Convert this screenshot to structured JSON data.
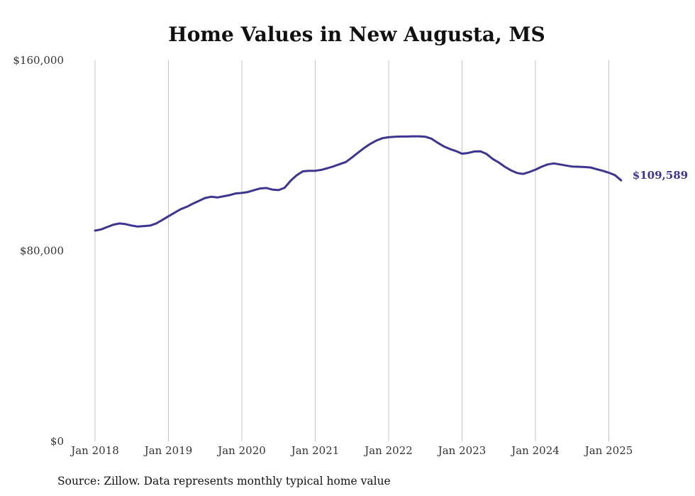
{
  "chart_data": {
    "type": "line",
    "title": "Home Values in New Augusta, MS",
    "xlabel": "",
    "ylabel": "",
    "ylim": [
      0,
      160000
    ],
    "y_ticks": [
      {
        "value": 0,
        "label": "$0"
      },
      {
        "value": 80000,
        "label": "$80,000"
      },
      {
        "value": 160000,
        "label": "$160,000"
      }
    ],
    "x_ticks": [
      {
        "value": 2018,
        "label": "Jan 2018"
      },
      {
        "value": 2019,
        "label": "Jan 2019"
      },
      {
        "value": 2020,
        "label": "Jan 2020"
      },
      {
        "value": 2021,
        "label": "Jan 2021"
      },
      {
        "value": 2022,
        "label": "Jan 2022"
      },
      {
        "value": 2023,
        "label": "Jan 2023"
      },
      {
        "value": 2024,
        "label": "Jan 2024"
      },
      {
        "value": 2025,
        "label": "Jan 2025"
      }
    ],
    "grid": "vertical",
    "line_color": "#3d3591",
    "series": [
      {
        "x": [
          2018.0,
          2018.083,
          2018.167,
          2018.25,
          2018.333,
          2018.417,
          2018.5,
          2018.583,
          2018.667,
          2018.75,
          2018.833,
          2018.917,
          2019.0,
          2019.083,
          2019.167,
          2019.25,
          2019.333,
          2019.417,
          2019.5,
          2019.583,
          2019.667,
          2019.75,
          2019.833,
          2019.917,
          2020.0,
          2020.083,
          2020.167,
          2020.25,
          2020.333,
          2020.417,
          2020.5,
          2020.583,
          2020.667,
          2020.75,
          2020.833,
          2020.917,
          2021.0,
          2021.083,
          2021.167,
          2021.25,
          2021.333,
          2021.417,
          2021.5,
          2021.583,
          2021.667,
          2021.75,
          2021.833,
          2021.917,
          2022.0,
          2022.083,
          2022.167,
          2022.25,
          2022.333,
          2022.417,
          2022.5,
          2022.583,
          2022.667,
          2022.75,
          2022.833,
          2022.917,
          2023.0,
          2023.083,
          2023.167,
          2023.25,
          2023.333,
          2023.417,
          2023.5,
          2023.583,
          2023.667,
          2023.75,
          2023.833,
          2023.917,
          2024.0,
          2024.083,
          2024.167,
          2024.25,
          2024.333,
          2024.417,
          2024.5,
          2024.583,
          2024.667,
          2024.75,
          2024.833,
          2024.917,
          2025.0,
          2025.083,
          2025.167
        ],
        "y": [
          88500,
          89000,
          90000,
          91000,
          91500,
          91200,
          90600,
          90200,
          90400,
          90600,
          91500,
          93000,
          94500,
          96000,
          97500,
          98500,
          99800,
          101000,
          102200,
          102700,
          102400,
          102900,
          103400,
          104100,
          104300,
          104700,
          105500,
          106200,
          106400,
          105700,
          105500,
          106500,
          109500,
          111800,
          113400,
          113600,
          113600,
          114000,
          114700,
          115500,
          116400,
          117300,
          119200,
          121200,
          123200,
          124900,
          126300,
          127300,
          127700,
          127900,
          128000,
          128000,
          128100,
          128100,
          127900,
          127100,
          125400,
          123900,
          122800,
          121900,
          120800,
          121100,
          121700,
          121800,
          120700,
          118600,
          117100,
          115300,
          113800,
          112700,
          112300,
          113100,
          114100,
          115300,
          116300,
          116700,
          116300,
          115800,
          115400,
          115300,
          115200,
          115000,
          114300,
          113600,
          112800,
          111800,
          109589
        ]
      }
    ],
    "end_label": "$109,589",
    "source_note": "Source: Zillow. Data represents monthly typical home value"
  }
}
